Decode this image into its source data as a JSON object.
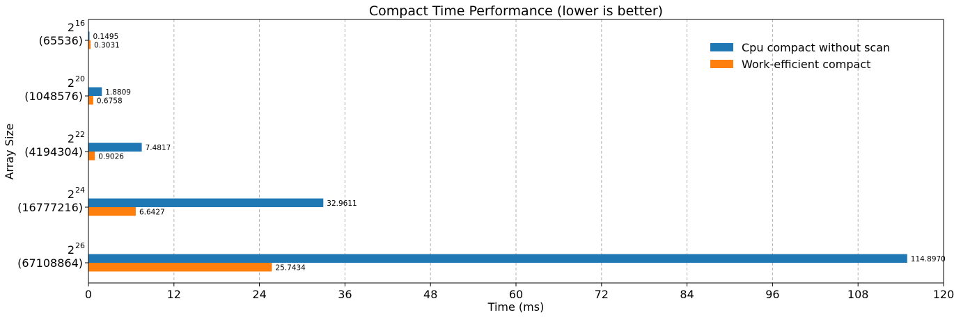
{
  "chart_data": {
    "type": "bar",
    "orientation": "horizontal",
    "title": "Compact Time Performance (lower is better)",
    "xlabel": "Time (ms)",
    "ylabel": "Array Size",
    "xlim": [
      0,
      120
    ],
    "xticks": [
      0,
      12,
      24,
      36,
      48,
      60,
      72,
      84,
      96,
      108,
      120
    ],
    "grid": "vertical dashed",
    "legend_position": "top-right",
    "categories": [
      {
        "base": "2",
        "exp": "16",
        "value_label": "(65536)"
      },
      {
        "base": "2",
        "exp": "20",
        "value_label": "(1048576)"
      },
      {
        "base": "2",
        "exp": "22",
        "value_label": "(4194304)"
      },
      {
        "base": "2",
        "exp": "24",
        "value_label": "(16777216)"
      },
      {
        "base": "2",
        "exp": "26",
        "value_label": "(67108864)"
      }
    ],
    "series": [
      {
        "name": "Cpu compact without scan",
        "color": "#1f77b4",
        "values": [
          0.1495,
          1.8809,
          7.4817,
          32.9611,
          114.897
        ],
        "labels": [
          "0.1495",
          "1.8809",
          "7.4817",
          "32.9611",
          "114.8970"
        ]
      },
      {
        "name": "Work-efficient compact",
        "color": "#ff7f0e",
        "values": [
          0.3031,
          0.6758,
          0.9026,
          6.6427,
          25.7434
        ],
        "labels": [
          "0.3031",
          "0.6758",
          "0.9026",
          "6.6427",
          "25.7434"
        ]
      }
    ]
  }
}
